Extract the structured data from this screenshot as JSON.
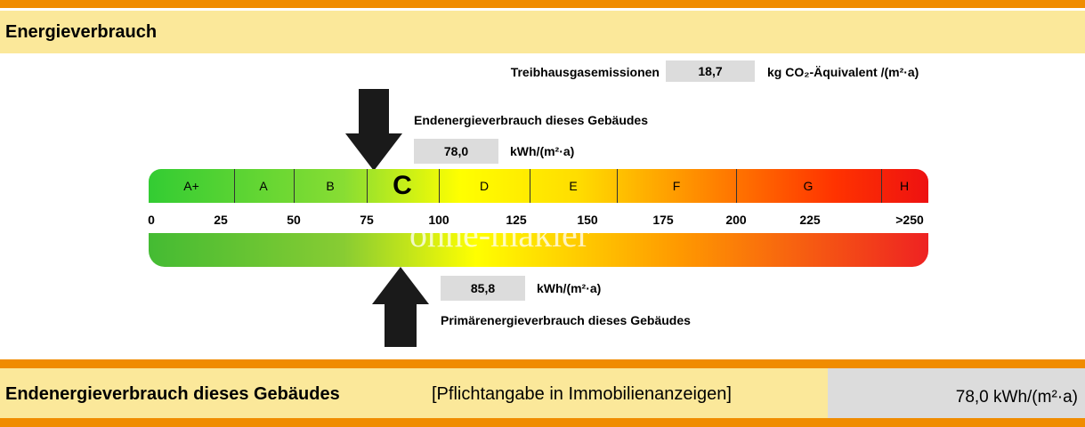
{
  "header": {
    "title": "Energieverbrauch"
  },
  "emissions": {
    "label": "Treibhausgasemissionen",
    "value": "18,7",
    "unit": "kg CO₂-Äquivalent /(m²·a)"
  },
  "final_energy": {
    "label": "Endenergieverbrauch dieses Gebäudes",
    "value": "78,0",
    "unit": "kWh/(m²·a)"
  },
  "classes": [
    "A+",
    "A",
    "B",
    "C",
    "D",
    "E",
    "F",
    "G",
    "H"
  ],
  "scale": [
    "0",
    "25",
    "50",
    "75",
    "100",
    "125",
    "150",
    "175",
    "200",
    "225",
    ">250"
  ],
  "watermark": "ohne-makler",
  "primary_energy": {
    "value": "85,8",
    "unit": "kWh/(m²·a)",
    "label": "Primärenergieverbrauch dieses Gebäudes"
  },
  "footer": {
    "label": "Endenergieverbrauch dieses Gebäudes",
    "note": "[Pflichtangabe in Immobilienanzeigen]",
    "value": "78,0 kWh/(m²·a)"
  }
}
